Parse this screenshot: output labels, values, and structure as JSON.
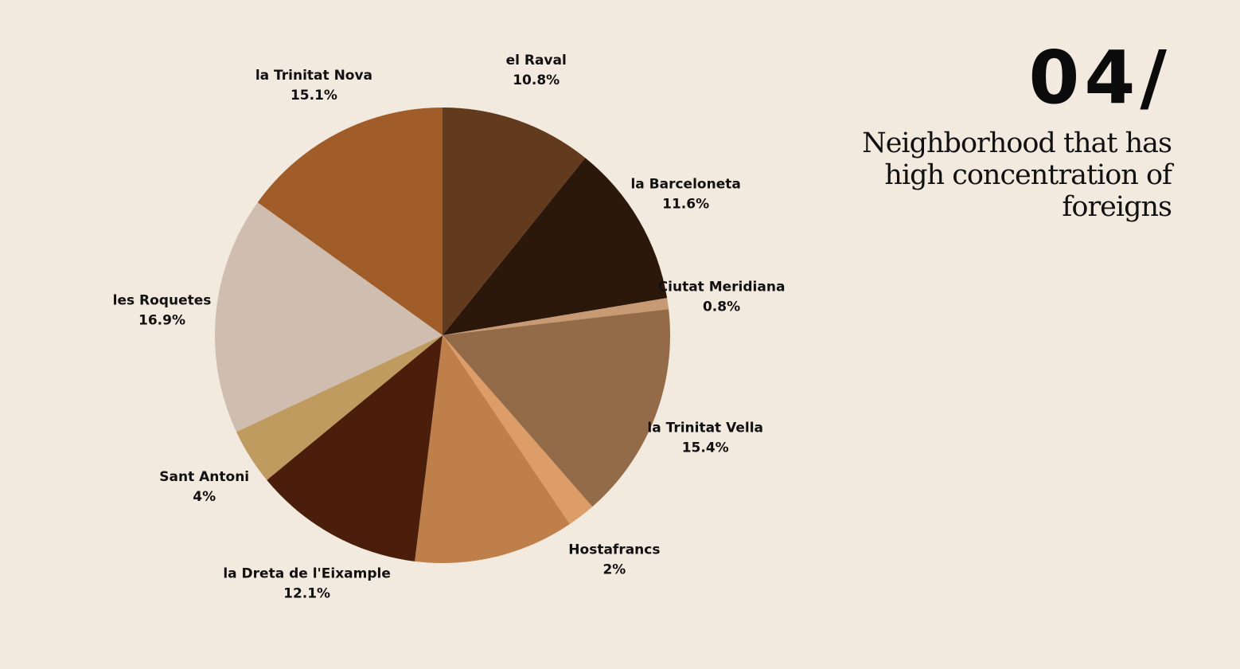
{
  "header": {
    "number": "04/",
    "subtitle": "Neighborhood that has high concentration of foreigns"
  },
  "chart_data": {
    "type": "pie",
    "title": "",
    "start_angle_deg": 0,
    "direction": "clockwise",
    "slices": [
      {
        "label": "el Raval",
        "value": 10.8,
        "value_label": "10.8%",
        "color": "#623a1e"
      },
      {
        "label": "la Barceloneta",
        "value": 11.6,
        "value_label": "11.6%",
        "color": "#2c180b"
      },
      {
        "label": "Ciutat Meridiana",
        "value": 0.8,
        "value_label": "0.8%",
        "color": "#c89a73"
      },
      {
        "label": "la Trinitat Vella",
        "value": 15.4,
        "value_label": "15.4%",
        "color": "#946b49"
      },
      {
        "label": "Hostafrancs",
        "value": 2,
        "value_label": "2%",
        "color": "#dc9d68"
      },
      {
        "label": "",
        "value": 11.4,
        "value_label": "",
        "color": "#bf7f4a"
      },
      {
        "label": "la Dreta de l'Eixample",
        "value": 12.1,
        "value_label": "12.1%",
        "color": "#4a1e0b"
      },
      {
        "label": "Sant Antoni",
        "value": 4,
        "value_label": "4%",
        "color": "#bf9b60"
      },
      {
        "label": "les Roquetes",
        "value": 16.9,
        "value_label": "16.9%",
        "color": "#cfbeb0"
      },
      {
        "label": "la Trinitat Nova",
        "value": 15.1,
        "value_label": "15.1%",
        "color": "#a05d2a"
      }
    ],
    "background_color": "#f2e9df"
  }
}
